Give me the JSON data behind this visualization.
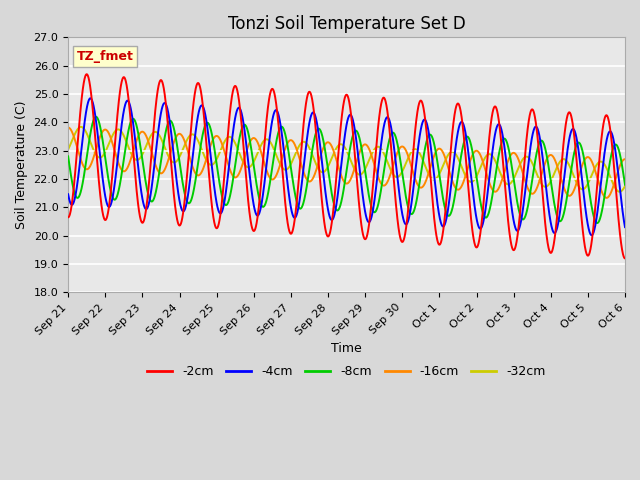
{
  "title": "Tonzi Soil Temperature Set D",
  "xlabel": "Time",
  "ylabel": "Soil Temperature (C)",
  "ylim": [
    18.0,
    27.0
  ],
  "yticks": [
    18.0,
    19.0,
    20.0,
    21.0,
    22.0,
    23.0,
    24.0,
    25.0,
    26.0,
    27.0
  ],
  "xtick_labels": [
    "Sep 21",
    "Sep 22",
    "Sep 23",
    "Sep 24",
    "Sep 25",
    "Sep 26",
    "Sep 27",
    "Sep 28",
    "Sep 29",
    "Sep 30",
    "Oct 1",
    "Oct 2",
    "Oct 3",
    "Oct 4",
    "Oct 5",
    "Oct 6"
  ],
  "legend_labels": [
    "-2cm",
    "-4cm",
    "-8cm",
    "-16cm",
    "-32cm"
  ],
  "legend_colors": [
    "#ff0000",
    "#0000ff",
    "#00cc00",
    "#ff8800",
    "#cccc00"
  ],
  "annotation_text": "TZ_fmet",
  "annotation_bg": "#ffffcc",
  "annotation_border": "#aaaaaa",
  "fig_bg_color": "#d8d8d8",
  "plot_bg_color": "#e8e8e8",
  "title_fontsize": 12,
  "label_fontsize": 9,
  "tick_fontsize": 8,
  "n_days": 15
}
